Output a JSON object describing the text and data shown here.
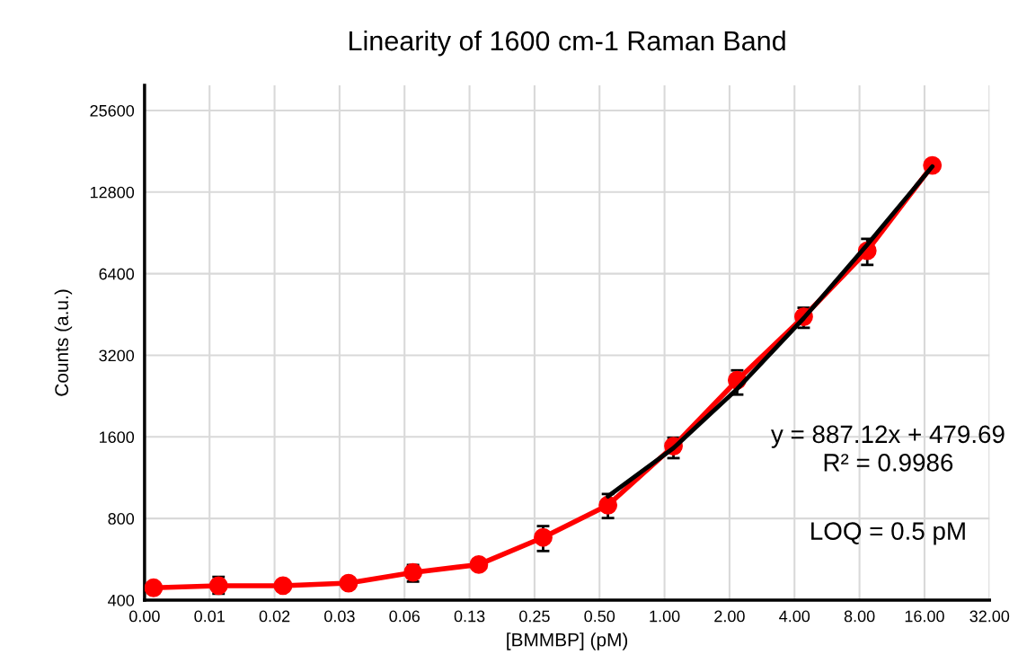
{
  "chart_data": {
    "type": "line",
    "title": "Linearity of 1600 cm-1 Raman Band",
    "xlabel": "[BMMBP] (pM)",
    "ylabel": "Counts (a.u.)",
    "log": "xy",
    "grid": true,
    "legend": false,
    "marker": "circle",
    "line_style": "solid",
    "xlim": [
      0.00390625,
      32
    ],
    "ylim": [
      400,
      31700
    ],
    "xticks": [
      {
        "value": 0.00390625,
        "label": "0.00"
      },
      {
        "value": 0.0078125,
        "label": "0.01"
      },
      {
        "value": 0.015625,
        "label": "0.02"
      },
      {
        "value": 0.03125,
        "label": "0.03"
      },
      {
        "value": 0.0625,
        "label": "0.06"
      },
      {
        "value": 0.125,
        "label": "0.13"
      },
      {
        "value": 0.25,
        "label": "0.25"
      },
      {
        "value": 0.5,
        "label": "0.50"
      },
      {
        "value": 1,
        "label": "1.00"
      },
      {
        "value": 2,
        "label": "2.00"
      },
      {
        "value": 4,
        "label": "4.00"
      },
      {
        "value": 8,
        "label": "8.00"
      },
      {
        "value": 16,
        "label": "16.00"
      },
      {
        "value": 32,
        "label": "32.00"
      }
    ],
    "yticks": [
      400,
      800,
      1600,
      3200,
      6400,
      12800,
      25600
    ],
    "series": [
      {
        "color": "#ff0000",
        "x": [
          0.0043,
          0.0086,
          0.0171,
          0.0344,
          0.0684,
          0.138,
          0.274,
          0.547,
          1.1,
          2.17,
          4.41,
          8.69,
          17.4
        ],
        "values": [
          444,
          452,
          452,
          462,
          506,
          541,
          681,
          896,
          1479,
          2590,
          4440,
          7777,
          16060
        ],
        "errors": [
          null,
          [
            422,
            487
          ],
          null,
          null,
          [
            468,
            539
          ],
          null,
          [
            607,
            750
          ],
          [
            803,
            985
          ],
          [
            1336,
            1589
          ],
          [
            2292,
            2816
          ],
          [
            4042,
            4793
          ],
          [
            6897,
            8604
          ],
          null
        ]
      },
      {
        "type": "line",
        "marker": "none",
        "color": "#000000",
        "x": [
          0.547,
          1.1,
          2.17,
          4.41,
          8.69,
          17.4
        ],
        "values": [
          965,
          1455,
          2405,
          4383,
          8189,
          15916
        ]
      }
    ],
    "annotations": [
      "y = 887.12x + 479.69",
      "R² = 0.9986",
      "LOQ = 0.5 pM"
    ]
  }
}
